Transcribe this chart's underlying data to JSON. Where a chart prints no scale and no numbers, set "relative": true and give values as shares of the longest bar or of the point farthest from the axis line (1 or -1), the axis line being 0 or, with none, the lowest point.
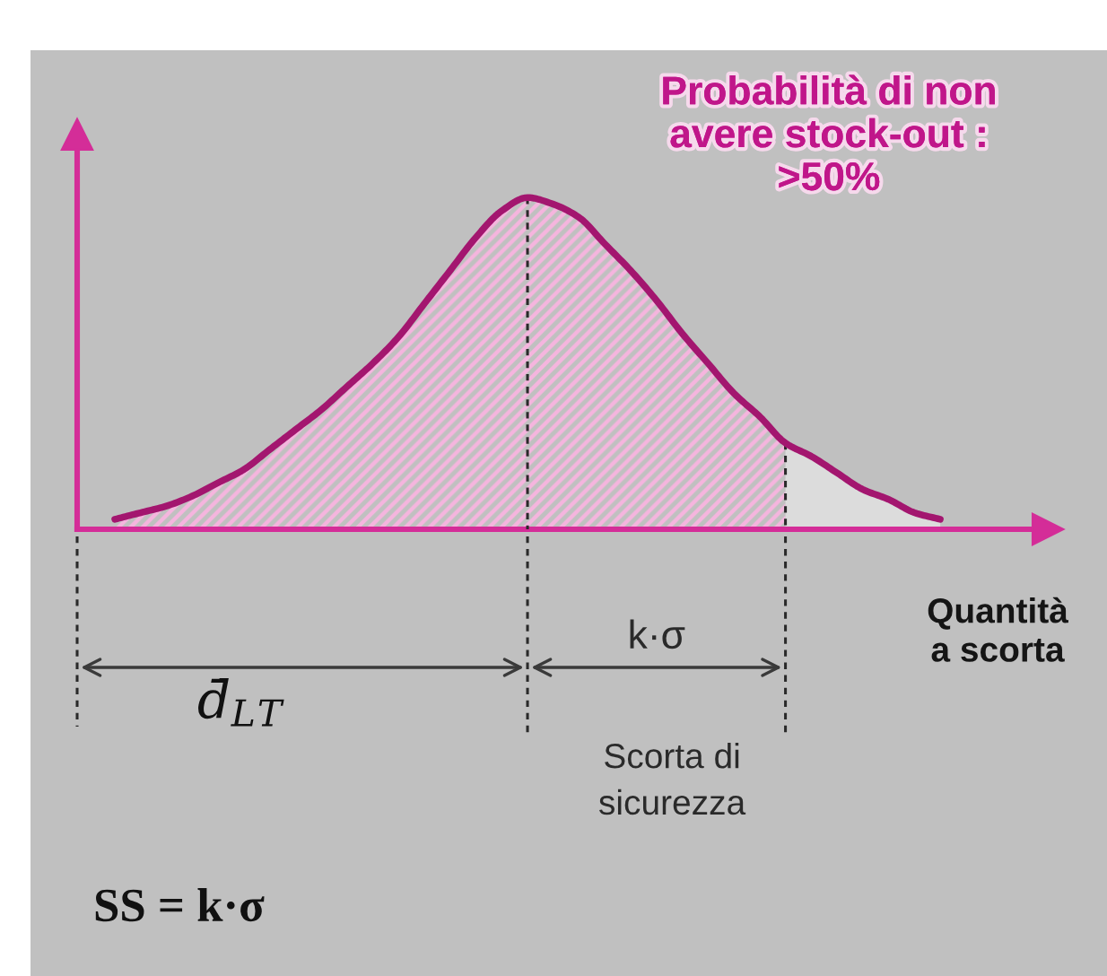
{
  "chart_data": {
    "type": "area",
    "relative": true,
    "categories": [
      null,
      null,
      null,
      null,
      null,
      null,
      null,
      null,
      null,
      null,
      null,
      null,
      null,
      null,
      null,
      null,
      null,
      null,
      null,
      null,
      null,
      null,
      null,
      null,
      null,
      null,
      null,
      null,
      null,
      null,
      null,
      null,
      null
    ],
    "series": [
      {
        "type": "line",
        "color": "#a3166f",
        "values": [
          0.03,
          0.05,
          0.07,
          0.1,
          0.14,
          0.18,
          0.24,
          0.3,
          0.36,
          0.43,
          0.5,
          0.58,
          0.68,
          0.78,
          0.88,
          0.96,
          1.0,
          0.98,
          0.94,
          0.86,
          0.78,
          0.69,
          0.59,
          0.5,
          0.41,
          0.34,
          0.26,
          0.22,
          0.17,
          0.12,
          0.09,
          0.05,
          0.03
        ]
      },
      {
        "color": "#f5b5de",
        "values": [
          0.03,
          0.05,
          0.07,
          0.1,
          0.14,
          0.18,
          0.24,
          0.3,
          0.36,
          0.43,
          0.5,
          0.58,
          0.68,
          0.78,
          0.88,
          0.96,
          1.0,
          0.98,
          0.94,
          0.86,
          0.78,
          0.69,
          0.59,
          0.5,
          0.41,
          0.34,
          0.26,
          null,
          null,
          null,
          null,
          null,
          null
        ]
      },
      {
        "color": "#dcdcdc",
        "values": [
          null,
          null,
          null,
          null,
          null,
          null,
          null,
          null,
          null,
          null,
          null,
          null,
          null,
          null,
          null,
          null,
          null,
          null,
          null,
          null,
          null,
          null,
          null,
          null,
          null,
          null,
          0.26,
          0.22,
          0.17,
          0.12,
          0.09,
          0.05,
          0.03
        ]
      }
    ],
    "xlabel": "Quantità\na scorta",
    "annotations": [
      "Probabilità di non\navere stock-out :\n>50%",
      "d̄$_{L}$$_{T}$",
      "k·σ",
      "Scorta di\nsicurezza",
      "SS = k·σ"
    ]
  }
}
